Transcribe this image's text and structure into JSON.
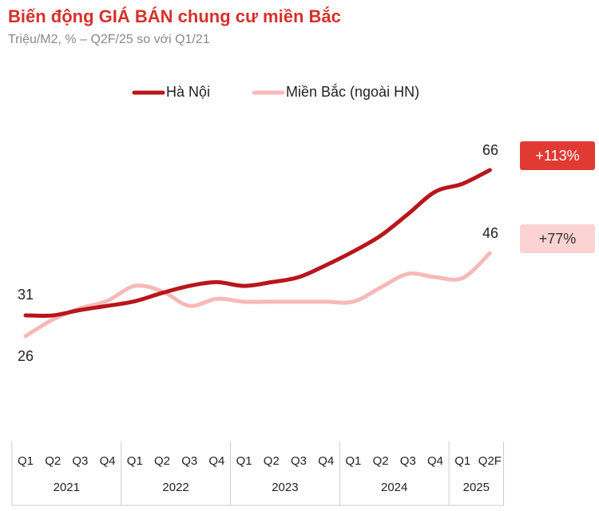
{
  "chart_data": {
    "type": "line",
    "title": "Biến động GIÁ BÁN chung cư miền Bắc",
    "subtitle": "Triệu/M2, % – Q2F/25 so với Q1/21",
    "categories": [
      "Q1",
      "Q2",
      "Q3",
      "Q4",
      "Q1",
      "Q2",
      "Q3",
      "Q4",
      "Q1",
      "Q2",
      "Q3",
      "Q4",
      "Q1",
      "Q2",
      "Q3",
      "Q4",
      "Q1",
      "Q2F"
    ],
    "x_groups": [
      {
        "label": "2021",
        "count": 4
      },
      {
        "label": "2022",
        "count": 4
      },
      {
        "label": "2023",
        "count": 4
      },
      {
        "label": "2024",
        "count": 4
      },
      {
        "label": "2025",
        "count": 2
      }
    ],
    "series": [
      {
        "name": "Hà Nội",
        "color": "#b8161b",
        "change_label": "+113%",
        "change_bg": "#e03a33",
        "change_fg": "#ffffff",
        "values": [
          31,
          31,
          32.3,
          33.3,
          34.4,
          36.4,
          38.1,
          39,
          38.1,
          39,
          40.2,
          43.1,
          46.4,
          50.2,
          55.4,
          60.8,
          62.7,
          66
        ]
      },
      {
        "name": "Miền Bắc (ngoài HN)",
        "color": "#f7b9b9",
        "change_label": "+77%",
        "change_bg": "#fbd3d3",
        "change_fg": "#333333",
        "values": [
          26,
          30,
          32.7,
          34.5,
          38.1,
          36.8,
          33.3,
          35,
          34.3,
          34.3,
          34.3,
          34.3,
          34.3,
          37.7,
          41,
          40.2,
          40,
          46
        ]
      }
    ]
  }
}
